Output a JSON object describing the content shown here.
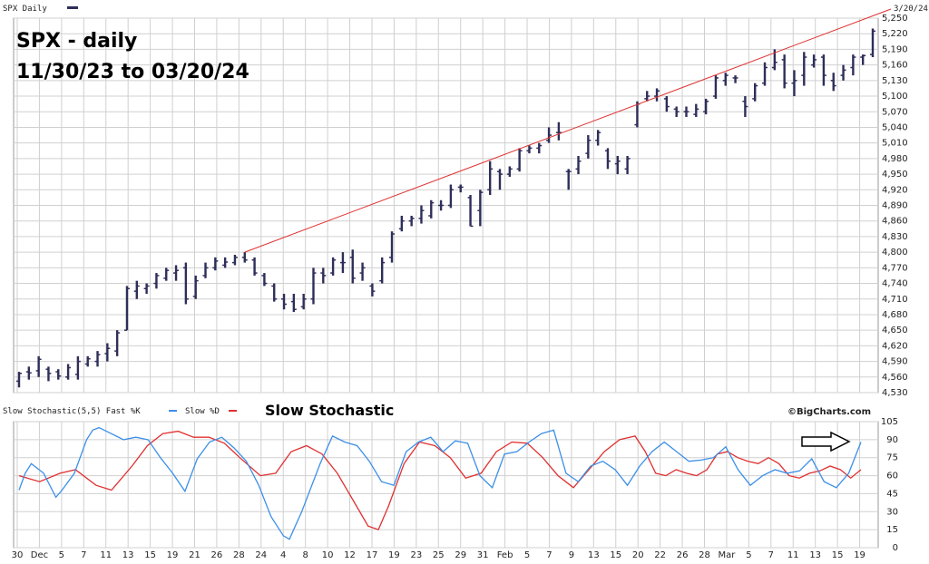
{
  "header": {
    "symbol_label": "SPX Daily",
    "date_label": "3/20/24",
    "title_line1": "SPX - daily",
    "title_line2": "11/30/23 to 03/20/24",
    "stoch_legend": "Slow Stochastic(5,5)  Fast %K",
    "stoch_legend2": "Slow %D",
    "stoch_title": "Slow Stochastic",
    "brand": "©BigCharts.com"
  },
  "colors": {
    "price_bar": "#2e2e5a",
    "trendline": "#e03030",
    "fast_k": "#3b8fe8",
    "slow_d": "#e03030",
    "grid": "#d0d0d0"
  },
  "chart_data": [
    {
      "type": "ohlc",
      "title": "SPX - daily",
      "subtitle": "11/30/23 to 03/20/24",
      "ylim": [
        4530,
        5250
      ],
      "y_ticks": [
        4530,
        4560,
        4590,
        4620,
        4650,
        4680,
        4710,
        4740,
        4770,
        4800,
        4830,
        4860,
        4890,
        4920,
        4950,
        4980,
        5010,
        5040,
        5070,
        5100,
        5130,
        5160,
        5190,
        5220,
        5250
      ],
      "x_tick_labels": [
        "30",
        "Dec",
        "5",
        "7",
        "11",
        "13",
        "15",
        "19",
        "21",
        "26",
        "28",
        "24",
        "4",
        "8",
        "10",
        "12",
        "17",
        "19",
        "23",
        "25",
        "29",
        "31",
        "Feb",
        "5",
        "7",
        "9",
        "13",
        "15",
        "20",
        "22",
        "26",
        "28",
        "Mar",
        "5",
        "7",
        "11",
        "13",
        "15",
        "19"
      ],
      "bars": [
        {
          "h": 4570,
          "l": 4540,
          "o": 4552,
          "c": 4567
        },
        {
          "h": 4580,
          "l": 4555,
          "o": 4570,
          "c": 4568
        },
        {
          "h": 4600,
          "l": 4560,
          "o": 4572,
          "c": 4594
        },
        {
          "h": 4580,
          "l": 4552,
          "o": 4575,
          "c": 4567
        },
        {
          "h": 4575,
          "l": 4555,
          "o": 4570,
          "c": 4562
        },
        {
          "h": 4585,
          "l": 4555,
          "o": 4560,
          "c": 4578
        },
        {
          "h": 4600,
          "l": 4555,
          "o": 4565,
          "c": 4590
        },
        {
          "h": 4600,
          "l": 4580,
          "o": 4585,
          "c": 4595
        },
        {
          "h": 4610,
          "l": 4580,
          "o": 4590,
          "c": 4603
        },
        {
          "h": 4625,
          "l": 4590,
          "o": 4605,
          "c": 4615
        },
        {
          "h": 4650,
          "l": 4600,
          "o": 4610,
          "c": 4645
        },
        {
          "h": 4735,
          "l": 4650,
          "o": 4650,
          "c": 4730
        },
        {
          "h": 4745,
          "l": 4710,
          "o": 4725,
          "c": 4735
        },
        {
          "h": 4740,
          "l": 4720,
          "o": 4730,
          "c": 4735
        },
        {
          "h": 4760,
          "l": 4730,
          "o": 4740,
          "c": 4755
        },
        {
          "h": 4770,
          "l": 4745,
          "o": 4750,
          "c": 4765
        },
        {
          "h": 4775,
          "l": 4745,
          "o": 4760,
          "c": 4765
        },
        {
          "h": 4780,
          "l": 4700,
          "o": 4770,
          "c": 4710
        },
        {
          "h": 4755,
          "l": 4710,
          "o": 4715,
          "c": 4745
        },
        {
          "h": 4780,
          "l": 4750,
          "o": 4755,
          "c": 4770
        },
        {
          "h": 4790,
          "l": 4765,
          "o": 4770,
          "c": 4783
        },
        {
          "h": 4790,
          "l": 4770,
          "o": 4775,
          "c": 4781
        },
        {
          "h": 4795,
          "l": 4775,
          "o": 4780,
          "c": 4790
        },
        {
          "h": 4800,
          "l": 4780,
          "o": 4790,
          "c": 4785
        },
        {
          "h": 4790,
          "l": 4755,
          "o": 4785,
          "c": 4760
        },
        {
          "h": 4760,
          "l": 4735,
          "o": 4755,
          "c": 4740
        },
        {
          "h": 4740,
          "l": 4705,
          "o": 4735,
          "c": 4710
        },
        {
          "h": 4720,
          "l": 4690,
          "o": 4710,
          "c": 4700
        },
        {
          "h": 4720,
          "l": 4685,
          "o": 4705,
          "c": 4690
        },
        {
          "h": 4720,
          "l": 4690,
          "o": 4695,
          "c": 4710
        },
        {
          "h": 4770,
          "l": 4700,
          "o": 4710,
          "c": 4760
        },
        {
          "h": 4770,
          "l": 4740,
          "o": 4760,
          "c": 4755
        },
        {
          "h": 4790,
          "l": 4755,
          "o": 4760,
          "c": 4785
        },
        {
          "h": 4800,
          "l": 4760,
          "o": 4780,
          "c": 4780
        },
        {
          "h": 4805,
          "l": 4740,
          "o": 4790,
          "c": 4750
        },
        {
          "h": 4780,
          "l": 4745,
          "o": 4760,
          "c": 4770
        },
        {
          "h": 4740,
          "l": 4715,
          "o": 4735,
          "c": 4725
        },
        {
          "h": 4790,
          "l": 4740,
          "o": 4745,
          "c": 4780
        },
        {
          "h": 4840,
          "l": 4780,
          "o": 4790,
          "c": 4835
        },
        {
          "h": 4870,
          "l": 4840,
          "o": 4845,
          "c": 4860
        },
        {
          "h": 4870,
          "l": 4850,
          "o": 4860,
          "c": 4865
        },
        {
          "h": 4890,
          "l": 4855,
          "o": 4865,
          "c": 4880
        },
        {
          "h": 4900,
          "l": 4865,
          "o": 4870,
          "c": 4895
        },
        {
          "h": 4900,
          "l": 4880,
          "o": 4890,
          "c": 4890
        },
        {
          "h": 4930,
          "l": 4885,
          "o": 4890,
          "c": 4920
        },
        {
          "h": 4930,
          "l": 4915,
          "o": 4925,
          "c": 4925
        },
        {
          "h": 4910,
          "l": 4850,
          "o": 4905,
          "c": 4850
        },
        {
          "h": 4920,
          "l": 4850,
          "o": 4880,
          "c": 4915
        },
        {
          "h": 4975,
          "l": 4910,
          "o": 4920,
          "c": 4960
        },
        {
          "h": 4960,
          "l": 4920,
          "o": 4955,
          "c": 4950
        },
        {
          "h": 4965,
          "l": 4945,
          "o": 4950,
          "c": 4960
        },
        {
          "h": 5000,
          "l": 4955,
          "o": 4960,
          "c": 4995
        },
        {
          "h": 5005,
          "l": 4990,
          "o": 4995,
          "c": 5000
        },
        {
          "h": 5010,
          "l": 4990,
          "o": 5000,
          "c": 5005
        },
        {
          "h": 5040,
          "l": 5010,
          "o": 5015,
          "c": 5025
        },
        {
          "h": 5050,
          "l": 5015,
          "o": 5030,
          "c": 5030
        },
        {
          "h": 4960,
          "l": 4920,
          "o": 4955,
          "c": 4955
        },
        {
          "h": 4985,
          "l": 4950,
          "o": 4960,
          "c": 4975
        },
        {
          "h": 5025,
          "l": 4980,
          "o": 4990,
          "c": 5015
        },
        {
          "h": 5035,
          "l": 5005,
          "o": 5015,
          "c": 5030
        },
        {
          "h": 5000,
          "l": 4960,
          "o": 4995,
          "c": 4975
        },
        {
          "h": 4985,
          "l": 4950,
          "o": 4970,
          "c": 4975
        },
        {
          "h": 4985,
          "l": 4950,
          "o": 4960,
          "c": 4980
        },
        {
          "h": 5090,
          "l": 5040,
          "o": 5045,
          "c": 5085
        },
        {
          "h": 5110,
          "l": 5090,
          "o": 5095,
          "c": 5100
        },
        {
          "h": 5115,
          "l": 5090,
          "o": 5100,
          "c": 5110
        },
        {
          "h": 5100,
          "l": 5070,
          "o": 5095,
          "c": 5080
        },
        {
          "h": 5080,
          "l": 5060,
          "o": 5075,
          "c": 5070
        },
        {
          "h": 5080,
          "l": 5060,
          "o": 5070,
          "c": 5070
        },
        {
          "h": 5085,
          "l": 5060,
          "o": 5065,
          "c": 5075
        },
        {
          "h": 5095,
          "l": 5065,
          "o": 5070,
          "c": 5090
        },
        {
          "h": 5140,
          "l": 5095,
          "o": 5100,
          "c": 5135
        },
        {
          "h": 5145,
          "l": 5120,
          "o": 5130,
          "c": 5140
        },
        {
          "h": 5140,
          "l": 5125,
          "o": 5135,
          "c": 5135
        },
        {
          "h": 5100,
          "l": 5060,
          "o": 5090,
          "c": 5080
        },
        {
          "h": 5125,
          "l": 5090,
          "o": 5095,
          "c": 5120
        },
        {
          "h": 5165,
          "l": 5120,
          "o": 5125,
          "c": 5155
        },
        {
          "h": 5190,
          "l": 5150,
          "o": 5155,
          "c": 5165
        },
        {
          "h": 5180,
          "l": 5115,
          "o": 5170,
          "c": 5125
        },
        {
          "h": 5150,
          "l": 5100,
          "o": 5125,
          "c": 5130
        },
        {
          "h": 5185,
          "l": 5120,
          "o": 5140,
          "c": 5175
        },
        {
          "h": 5180,
          "l": 5155,
          "o": 5160,
          "c": 5170
        },
        {
          "h": 5180,
          "l": 5120,
          "o": 5175,
          "c": 5140
        },
        {
          "h": 5145,
          "l": 5110,
          "o": 5130,
          "c": 5120
        },
        {
          "h": 5160,
          "l": 5130,
          "o": 5140,
          "c": 5150
        },
        {
          "h": 5180,
          "l": 5140,
          "o": 5155,
          "c": 5175
        },
        {
          "h": 5180,
          "l": 5160,
          "o": 5175,
          "c": 5178
        },
        {
          "h": 5230,
          "l": 5175,
          "o": 5180,
          "c": 5225
        }
      ],
      "trendline": {
        "from": {
          "bar": 23,
          "price": 4800
        },
        "to": {
          "bar": 87,
          "price": 5257
        }
      }
    },
    {
      "type": "line",
      "title": "Slow Stochastic",
      "ylim": [
        0,
        105
      ],
      "y_ticks": [
        0,
        15,
        30,
        45,
        60,
        75,
        90,
        105
      ],
      "series": [
        {
          "name": "Fast %K",
          "values": [
            48,
            62,
            70,
            62,
            42,
            48,
            62,
            90,
            98,
            100,
            95,
            90,
            92,
            90,
            75,
            62,
            47,
            74,
            88,
            92,
            83,
            72,
            52,
            26,
            10,
            7,
            30,
            70,
            93,
            88,
            85,
            72,
            55,
            52,
            80,
            88,
            92,
            80,
            89,
            87,
            60,
            50,
            78,
            80,
            88,
            95,
            98,
            62,
            55,
            68,
            72,
            65,
            52,
            68,
            80,
            88,
            80,
            72,
            73,
            75,
            84,
            65,
            52,
            60,
            65,
            62,
            64,
            74,
            55,
            50,
            62,
            88
          ],
          "x_index": [
            0,
            1,
            2,
            4,
            6,
            7,
            9,
            11,
            12,
            13,
            15,
            17,
            19,
            21,
            23,
            25,
            27,
            29,
            31,
            33,
            35,
            37,
            39,
            41,
            43,
            44,
            46,
            49,
            51,
            53,
            55,
            57,
            59,
            61,
            63,
            65,
            67,
            69,
            71,
            73,
            75,
            77,
            79,
            81,
            83,
            85,
            87,
            89,
            91,
            93,
            95,
            97,
            99,
            101,
            103,
            105,
            107,
            109,
            111,
            113,
            115,
            117,
            119,
            121,
            123,
            125,
            127,
            129,
            131,
            133,
            135,
            137
          ]
        },
        {
          "name": "Slow %D",
          "values": [
            60,
            55,
            62,
            65,
            52,
            48,
            68,
            85,
            95,
            97,
            92,
            92,
            87,
            75,
            60,
            62,
            80,
            85,
            78,
            62,
            40,
            18,
            15,
            35,
            70,
            88,
            85,
            75,
            58,
            62,
            80,
            88,
            87,
            75,
            60,
            50,
            65,
            80,
            90,
            93,
            80,
            62,
            60,
            65,
            62,
            60,
            65,
            78,
            80,
            75,
            72,
            70,
            75,
            70,
            60,
            58,
            62,
            64,
            68,
            65,
            58,
            65
          ],
          "x_index": [
            0,
            4,
            8,
            11,
            15,
            18,
            22,
            25,
            28,
            31,
            34,
            37,
            40,
            43,
            47,
            50,
            53,
            56,
            59,
            62,
            65,
            68,
            70,
            72,
            75,
            78,
            81,
            84,
            87,
            90,
            93,
            96,
            99,
            102,
            105,
            108,
            111,
            114,
            117,
            120,
            122,
            124,
            126,
            128,
            130,
            132,
            134,
            136,
            138,
            140,
            142,
            144,
            146,
            148,
            150,
            152,
            154,
            156,
            158,
            160,
            162,
            164
          ]
        }
      ]
    }
  ]
}
